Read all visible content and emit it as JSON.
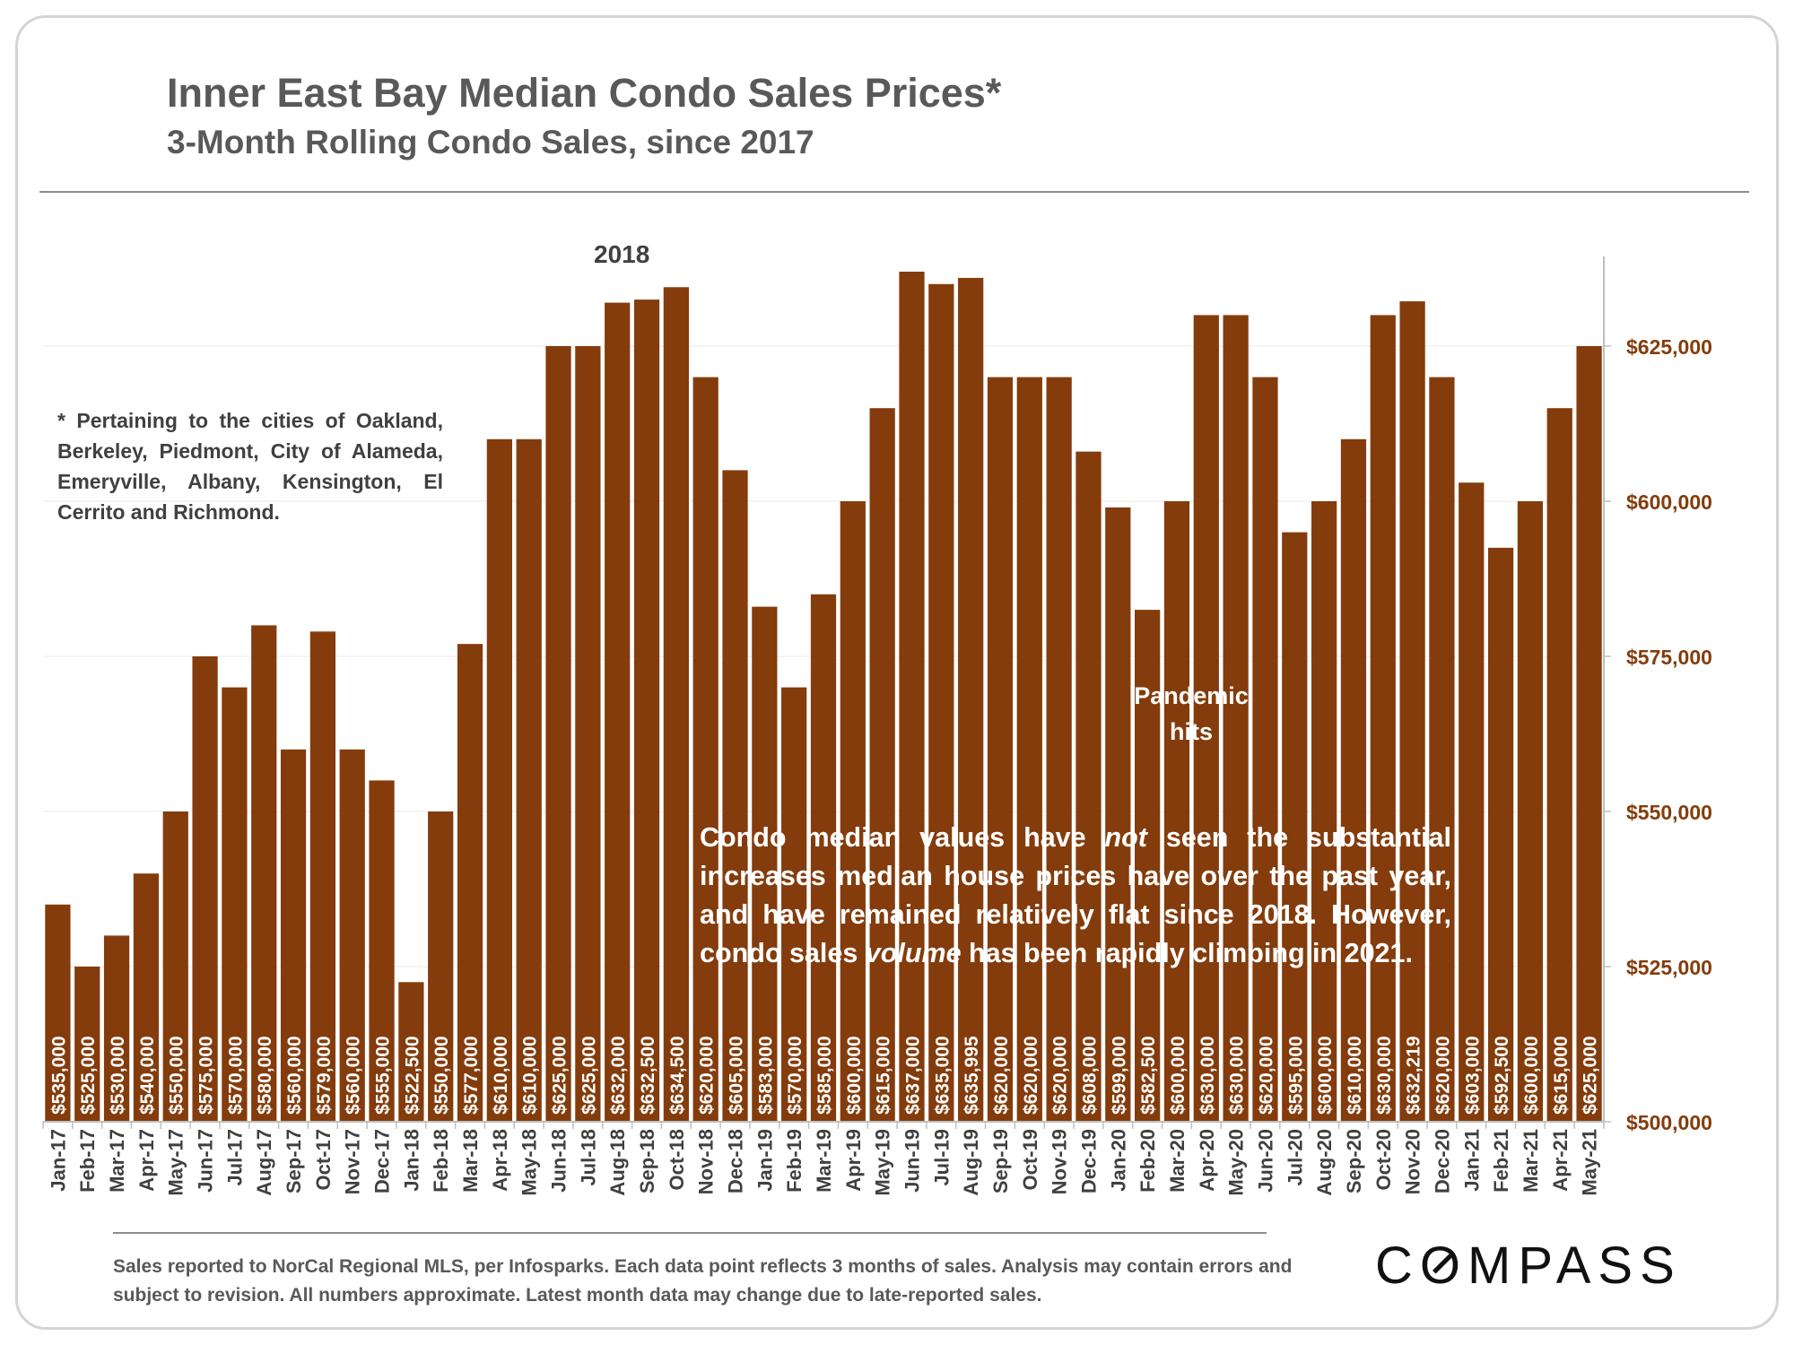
{
  "title": "Inner East Bay Median Condo Sales Prices*",
  "subtitle": "3-Month Rolling Condo Sales, since 2017",
  "note": "* Pertaining to the cities of Oakland, Berkeley, Piedmont, City of Alameda, Emeryville, Albany, Kensington, El Cerrito and Richmond.",
  "annotations": {
    "year_label": "2018",
    "pandemic": "Pandemic hits"
  },
  "callout": {
    "part1": "Condo median values have ",
    "emph1": "not",
    "part2": " seen the substantial increases median house prices have over the past year, and have remained relatively flat since 2018. However, condo sales ",
    "emph2": "volume",
    "part3": " has been rapidly climbing in 2021."
  },
  "footer": "Sales reported to NorCal Regional MLS, per Infosparks. Each data point reflects 3 months of sales. Analysis may contain errors and subject to revision. All numbers approximate. Latest month data may change due to late-reported sales.",
  "logo": "COMPASS",
  "colors": {
    "bar": "#843c0c",
    "axis_label": "#843c0c",
    "text": "#404040"
  },
  "chart_data": {
    "type": "bar",
    "title": "Inner East Bay Median Condo Sales Prices*",
    "subtitle": "3-Month Rolling Condo Sales, since 2017",
    "categories": [
      "Jan-17",
      "Feb-17",
      "Mar-17",
      "Apr-17",
      "May-17",
      "Jun-17",
      "Jul-17",
      "Aug-17",
      "Sep-17",
      "Oct-17",
      "Nov-17",
      "Dec-17",
      "Jan-18",
      "Feb-18",
      "Mar-18",
      "Apr-18",
      "May-18",
      "Jun-18",
      "Jul-18",
      "Aug-18",
      "Sep-18",
      "Oct-18",
      "Nov-18",
      "Dec-18",
      "Jan-19",
      "Feb-19",
      "Mar-19",
      "Apr-19",
      "May-19",
      "Jun-19",
      "Jul-19",
      "Aug-19",
      "Sep-19",
      "Oct-19",
      "Nov-19",
      "Dec-19",
      "Jan-20",
      "Feb-20",
      "Mar-20",
      "Apr-20",
      "May-20",
      "Jun-20",
      "Jul-20",
      "Aug-20",
      "Sep-20",
      "Oct-20",
      "Nov-20",
      "Dec-20",
      "Jan-21",
      "Feb-21",
      "Mar-21",
      "Apr-21",
      "May-21"
    ],
    "values": [
      535000,
      525000,
      530000,
      540000,
      550000,
      575000,
      570000,
      580000,
      560000,
      579000,
      560000,
      555000,
      522500,
      550000,
      577000,
      610000,
      610000,
      625000,
      625000,
      632000,
      632500,
      634500,
      620000,
      605000,
      583000,
      570000,
      585000,
      600000,
      615000,
      637000,
      635000,
      635995,
      620000,
      620000,
      620000,
      608000,
      599000,
      582500,
      600000,
      630000,
      630000,
      620000,
      595000,
      600000,
      610000,
      630000,
      632219,
      620000,
      603000,
      592500,
      600000,
      615000,
      625000
    ],
    "value_labels": [
      "$535,000",
      "$525,000",
      "$530,000",
      "$540,000",
      "$550,000",
      "$575,000",
      "$570,000",
      "$580,000",
      "$560,000",
      "$579,000",
      "$560,000",
      "$555,000",
      "$522,500",
      "$550,000",
      "$577,000",
      "$610,000",
      "$610,000",
      "$625,000",
      "$625,000",
      "$632,000",
      "$632,500",
      "$634,500",
      "$620,000",
      "$605,000",
      "$583,000",
      "$570,000",
      "$585,000",
      "$600,000",
      "$615,000",
      "$637,000",
      "$635,000",
      "$635,995",
      "$620,000",
      "$620,000",
      "$620,000",
      "$608,000",
      "$599,000",
      "$582,500",
      "$600,000",
      "$630,000",
      "$630,000",
      "$620,000",
      "$595,000",
      "$600,000",
      "$610,000",
      "$630,000",
      "$632,219",
      "$620,000",
      "$603,000",
      "$592,500",
      "$600,000",
      "$615,000",
      "$625,000"
    ],
    "y_ticks": [
      500000,
      525000,
      550000,
      575000,
      600000,
      625000
    ],
    "y_tick_labels": [
      "$500,000",
      "$525,000",
      "$550,000",
      "$575,000",
      "$600,000",
      "$625,000"
    ],
    "ylim": [
      500000,
      640000
    ],
    "y_axis_side": "right",
    "grid": true
  }
}
